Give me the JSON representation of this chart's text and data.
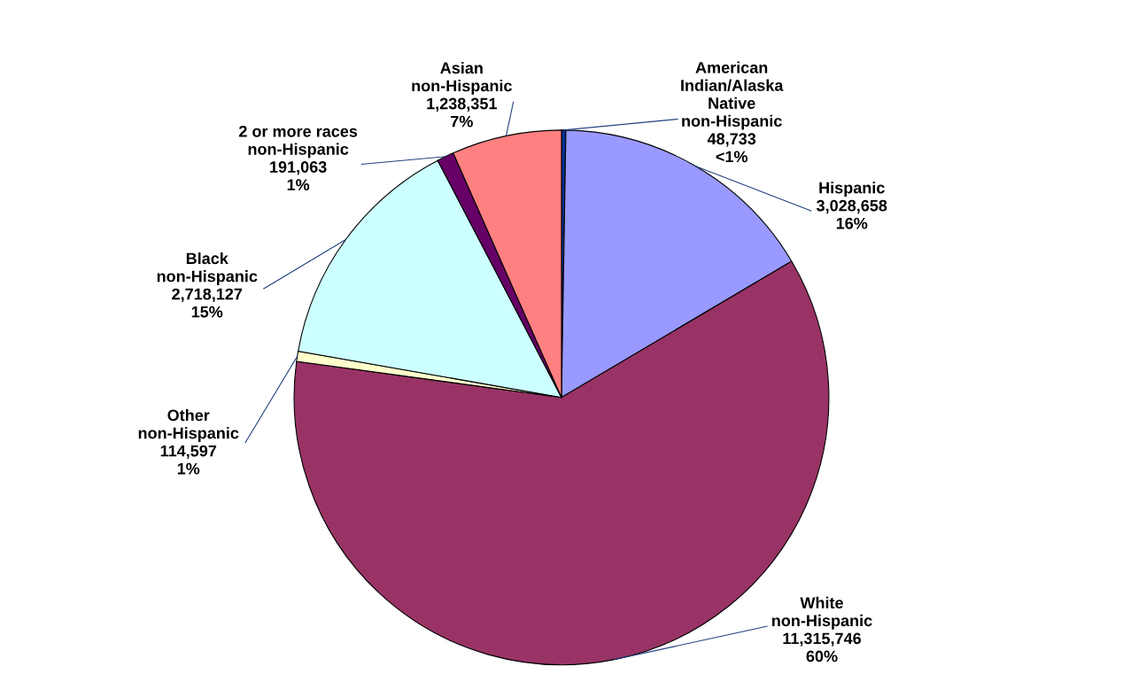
{
  "chart_data": {
    "type": "pie",
    "categories": [
      "American\nIndian/Alaska\nNative\nnon-Hispanic",
      "Hispanic",
      "White\nnon-Hispanic",
      "Other\nnon-Hispanic",
      "Black\nnon-Hispanic",
      "2 or more races\nnon-Hispanic",
      "Asian\nnon-Hispanic"
    ],
    "values": [
      48733,
      3028658,
      11315746,
      114597,
      2718127,
      191063,
      1238351
    ],
    "value_labels": [
      "48,733\n<1%",
      "3,028,658\n16%",
      "11,315,746\n60%",
      "114,597\n1%",
      "2,718,127\n15%",
      "191,063\n1%",
      "1,238,351\n7%"
    ],
    "colors": [
      "#003399",
      "#9999ff",
      "#993366",
      "#ffffcc",
      "#ccffff",
      "#660066",
      "#ff8080"
    ]
  }
}
